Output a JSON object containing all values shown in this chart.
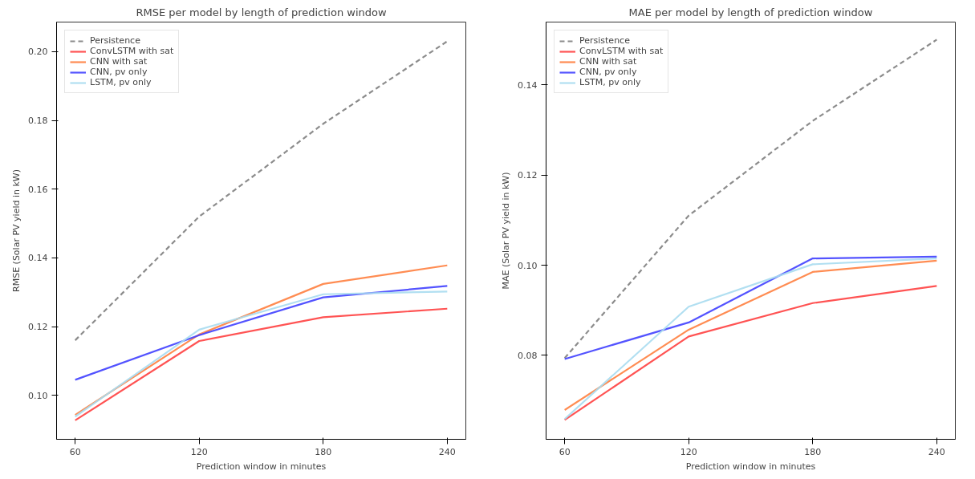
{
  "chart_data": [
    {
      "type": "line",
      "title": "RMSE per model by length of prediction window",
      "xlabel": "Prediction window in minutes",
      "ylabel": "RMSE (Solar PV yield in kW)",
      "x": [
        60,
        120,
        180,
        240
      ],
      "xlim": [
        51,
        249
      ],
      "xticks": [
        60,
        120,
        180,
        240
      ],
      "ylim": [
        0.0872,
        0.2086
      ],
      "yticks": [
        {
          "value": 0.1,
          "label": "0.10"
        },
        {
          "value": 0.12,
          "label": "0.12"
        },
        {
          "value": 0.14,
          "label": "0.14"
        },
        {
          "value": 0.16,
          "label": "0.16"
        },
        {
          "value": 0.18,
          "label": "0.18"
        },
        {
          "value": 0.2,
          "label": "0.20"
        }
      ],
      "legend": "top left",
      "grid": false,
      "series": [
        {
          "name": "Persistence",
          "color": "#808080",
          "line_style": "dashed",
          "values": [
            0.116,
            0.152,
            0.179,
            0.203
          ]
        },
        {
          "name": "ConvLSTM with sat",
          "color": "#ff4040",
          "line_style": "solid",
          "values": [
            0.0927,
            0.1158,
            0.1227,
            0.1252
          ]
        },
        {
          "name": "CNN with sat",
          "color": "#ff7f3f",
          "line_style": "solid",
          "values": [
            0.0943,
            0.1177,
            0.1324,
            0.1378
          ]
        },
        {
          "name": "CNN, pv only",
          "color": "#4040ff",
          "line_style": "solid",
          "values": [
            0.1045,
            0.1175,
            0.1285,
            0.1318
          ]
        },
        {
          "name": "LSTM, pv only",
          "color": "#a8dcf0",
          "line_style": "solid",
          "values": [
            0.0938,
            0.1191,
            0.1294,
            0.1302
          ]
        }
      ]
    },
    {
      "type": "line",
      "title": "MAE per model by length of prediction window",
      "xlabel": "Prediction window in minutes",
      "ylabel": "MAE (Solar PV yield in kW)",
      "x": [
        60,
        120,
        180,
        240
      ],
      "xlim": [
        51,
        249
      ],
      "xticks": [
        60,
        120,
        180,
        240
      ],
      "ylim": [
        0.0614,
        0.1539
      ],
      "yticks": [
        {
          "value": 0.08,
          "label": "0.08"
        },
        {
          "value": 0.1,
          "label": "0.10"
        },
        {
          "value": 0.12,
          "label": "0.12"
        },
        {
          "value": 0.14,
          "label": "0.14"
        }
      ],
      "legend": "top left",
      "grid": false,
      "series": [
        {
          "name": "Persistence",
          "color": "#808080",
          "line_style": "dashed",
          "values": [
            0.0794,
            0.111,
            0.132,
            0.15
          ]
        },
        {
          "name": "ConvLSTM with sat",
          "color": "#ff4040",
          "line_style": "solid",
          "values": [
            0.0657,
            0.0842,
            0.0916,
            0.0954
          ]
        },
        {
          "name": "CNN with sat",
          "color": "#ff7f3f",
          "line_style": "solid",
          "values": [
            0.0679,
            0.0857,
            0.0985,
            0.101
          ]
        },
        {
          "name": "CNN, pv only",
          "color": "#4040ff",
          "line_style": "solid",
          "values": [
            0.0792,
            0.0873,
            0.1015,
            0.1019
          ]
        },
        {
          "name": "LSTM, pv only",
          "color": "#a8dcf0",
          "line_style": "solid",
          "values": [
            0.0659,
            0.0908,
            0.1002,
            0.1015
          ]
        }
      ]
    }
  ]
}
